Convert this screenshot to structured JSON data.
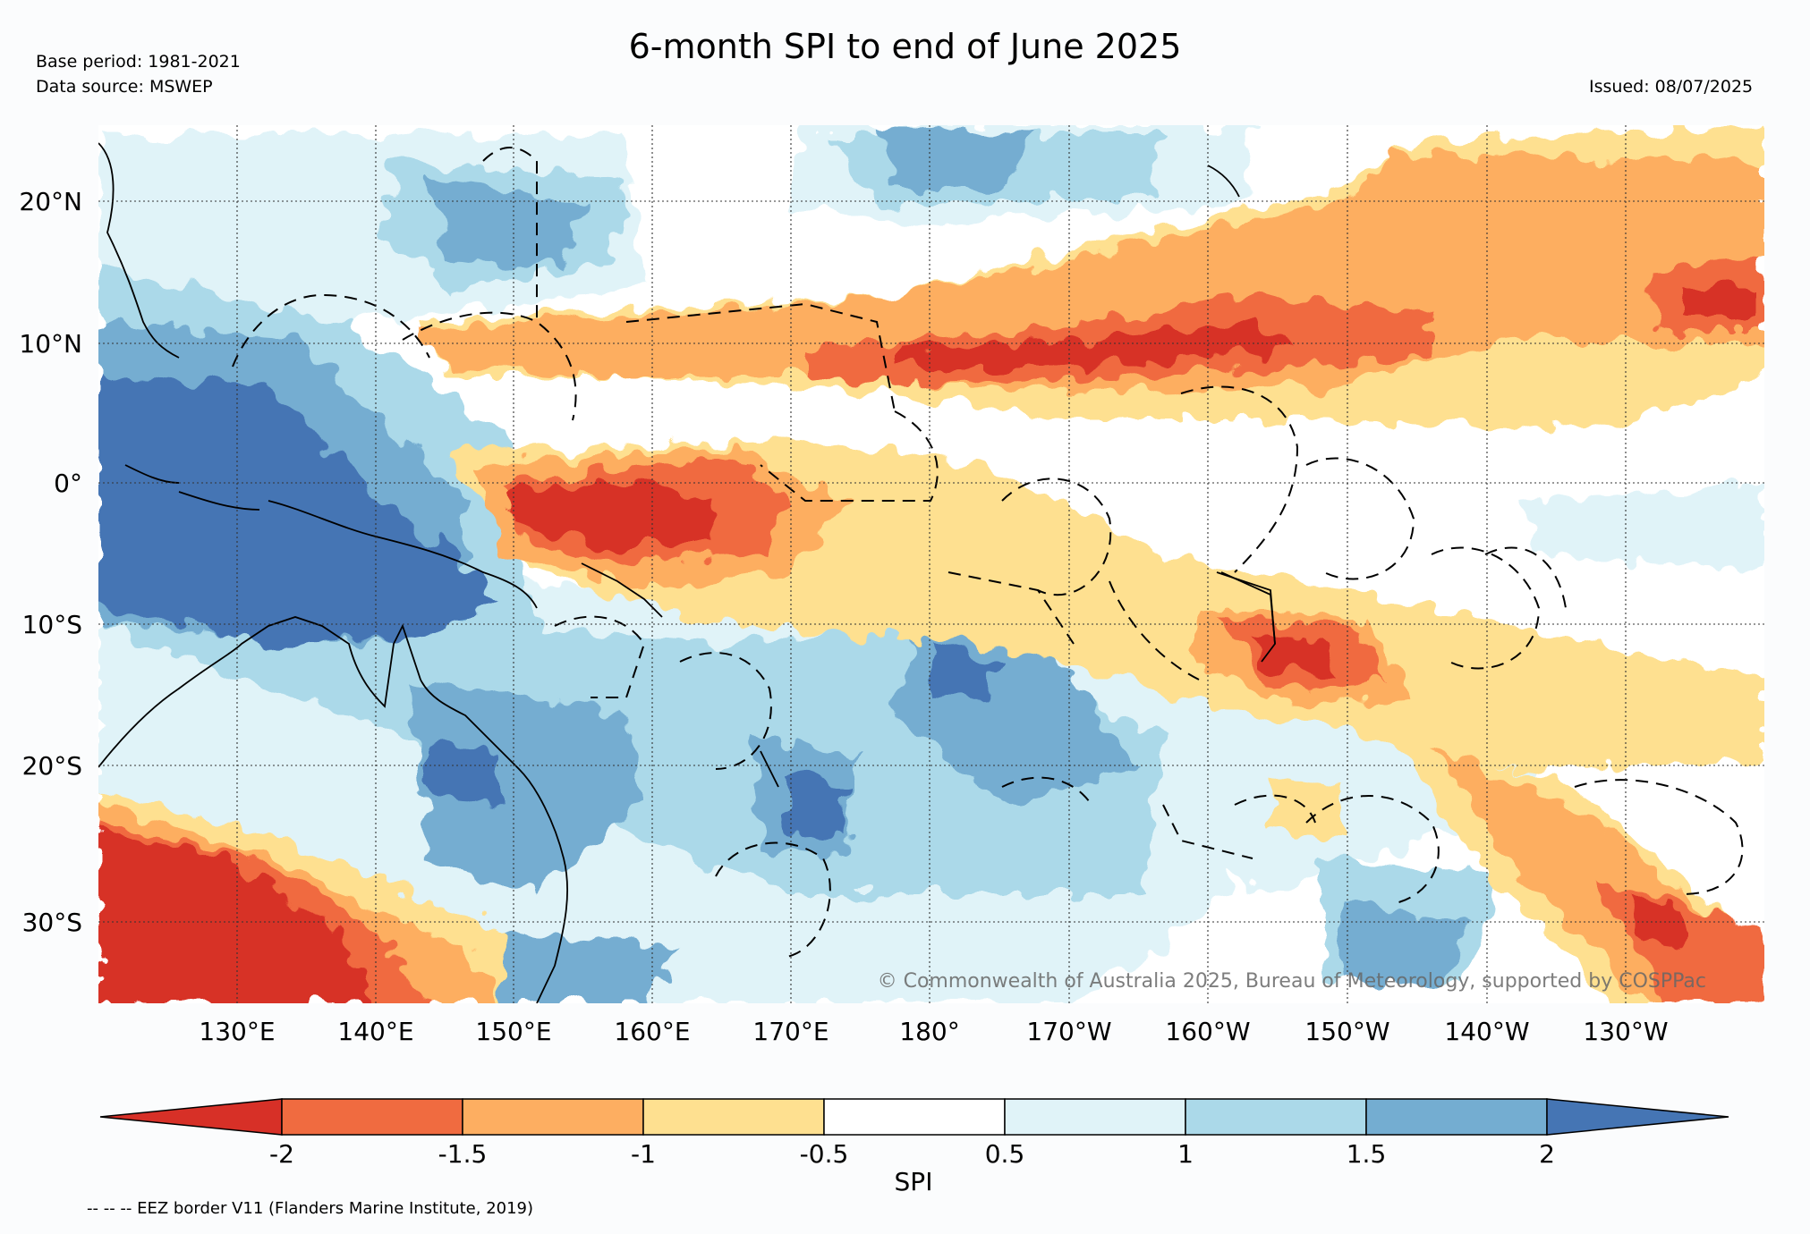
{
  "header": {
    "title": "6-month SPI to end of June 2025",
    "base_period": "Base period: 1981-2021",
    "data_source": "Data source: MSWEP",
    "issued": "Issued: 08/07/2025"
  },
  "map": {
    "lat_labels": [
      "20°N",
      "10°N",
      "0°",
      "10°S",
      "20°S",
      "30°S"
    ],
    "lon_labels": [
      "130°E",
      "140°E",
      "150°E",
      "160°E",
      "170°E",
      "180°",
      "170°W",
      "160°W",
      "150°W",
      "140°W",
      "130°W"
    ],
    "copyright": "© Commonwealth of Australia 2025, Bureau of Meteorology, supported by COSPPac"
  },
  "colorbar": {
    "label": "SPI",
    "ticks": [
      "-2",
      "-1.5",
      "-1",
      "-0.5",
      "0.5",
      "1",
      "1.5",
      "2"
    ],
    "colors": [
      "#d73027",
      "#f06b40",
      "#fdae61",
      "#fee090",
      "#ffffff",
      "#e0f3f8",
      "#abd9e9",
      "#74add1",
      "#4575b4"
    ]
  },
  "footer": {
    "legend_note": "-- -- -- EEZ border V11 (Flanders Marine Institute, 2019)"
  }
}
